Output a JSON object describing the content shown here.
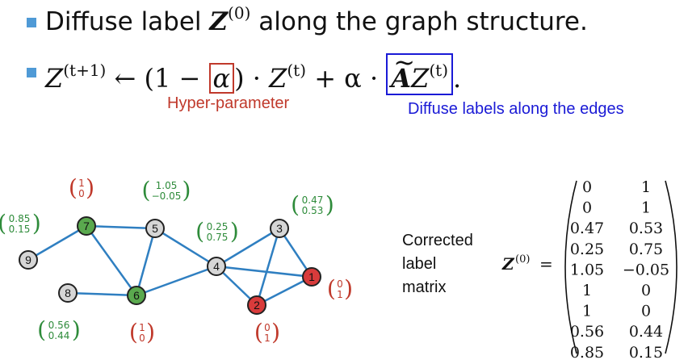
{
  "bullet1": {
    "pre": "Diffuse label ",
    "symbol": "Z",
    "superscript": "(0)",
    "post": " along the graph structure."
  },
  "bullet2": {
    "z": "Z",
    "sup_t1": "(t+1)",
    "arrow_open": " ← (1 − ",
    "alpha": "α",
    "close_dot": ") · ",
    "sup_t": "(t)",
    "plus_alpha": " + α · ",
    "a_tilde": "A",
    "end": "."
  },
  "annotations": {
    "hyper": "Hyper-parameter",
    "diffuse": "Diffuse labels along the edges"
  },
  "corrected_label": [
    "Corrected",
    "label",
    "matrix"
  ],
  "matrix": {
    "lhs": "Z",
    "lhs_sup": "(0)",
    "eq": "=",
    "rows": [
      [
        "0",
        "1"
      ],
      [
        "0",
        "1"
      ],
      [
        "0.47",
        "0.53"
      ],
      [
        "0.25",
        "0.75"
      ],
      [
        "1.05",
        "−0.05"
      ],
      [
        "1",
        "0"
      ],
      [
        "1",
        "0"
      ],
      [
        "0.56",
        "0.44"
      ],
      [
        "0.85",
        "0.15"
      ]
    ]
  },
  "nodes": [
    {
      "id": "1",
      "class": "red"
    },
    {
      "id": "2",
      "class": "red"
    },
    {
      "id": "3",
      "class": "gray"
    },
    {
      "id": "4",
      "class": "gray"
    },
    {
      "id": "5",
      "class": "gray"
    },
    {
      "id": "6",
      "class": "green"
    },
    {
      "id": "7",
      "class": "green"
    },
    {
      "id": "8",
      "class": "gray"
    },
    {
      "id": "9",
      "class": "gray"
    }
  ],
  "edges": [
    [
      "9",
      "7"
    ],
    [
      "7",
      "5"
    ],
    [
      "7",
      "6"
    ],
    [
      "5",
      "6"
    ],
    [
      "5",
      "4"
    ],
    [
      "8",
      "6"
    ],
    [
      "6",
      "4"
    ],
    [
      "4",
      "3"
    ],
    [
      "4",
      "2"
    ],
    [
      "4",
      "1"
    ],
    [
      "3",
      "1"
    ],
    [
      "3",
      "2"
    ],
    [
      "2",
      "1"
    ]
  ],
  "vectors": {
    "7": [
      "1",
      "0"
    ],
    "5": [
      "1.05",
      "−0.05"
    ],
    "9": [
      "0.85",
      "0.15"
    ],
    "4": [
      "0.25",
      "0.75"
    ],
    "3": [
      "0.47",
      "0.53"
    ],
    "1": [
      "0",
      "1"
    ],
    "8": [
      "0.56",
      "0.44"
    ],
    "6": [
      "1",
      "0"
    ],
    "2": [
      "0",
      "1"
    ]
  },
  "colors": {
    "red_node": "#d93b3b",
    "green_node": "#5aa94e",
    "gray_node": "#d6d6d6",
    "edge": "#2f7fc1",
    "label_red": "#c0392b",
    "label_green": "#2e8b3a",
    "text_blue": "#1a1ad6",
    "bullet": "#4f9ad6"
  }
}
